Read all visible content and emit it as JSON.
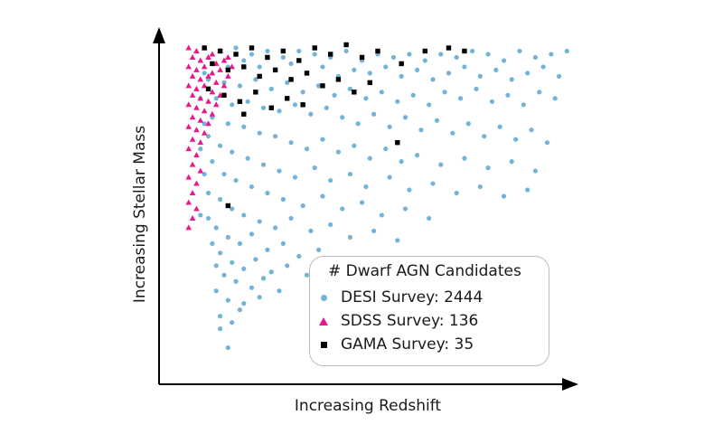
{
  "chart_data": {
    "type": "scatter",
    "title": "",
    "xlabel": "Increasing Redshift",
    "ylabel": "Increasing Stellar Mass",
    "xlim": [
      0,
      1
    ],
    "ylim": [
      0,
      1
    ],
    "grid": false,
    "ticks": "none",
    "legend": {
      "placement": "bottom-right",
      "title": "# Dwarf AGN Candidates",
      "entries": [
        {
          "label": "DESI Survey: 2444",
          "color": "#74b3d8",
          "marker": "circle"
        },
        {
          "label": "SDSS Survey: 136",
          "color": "#e9178a",
          "marker": "triangle"
        },
        {
          "label": "GAMA Survey: 35",
          "color": "#000000",
          "marker": "square"
        }
      ]
    },
    "series": [
      {
        "name": "DESI Survey: 2444",
        "color": "#74b3d8",
        "marker": "circle",
        "points": [
          [
            0.06,
            0.98
          ],
          [
            0.1,
            0.97
          ],
          [
            0.14,
            0.98
          ],
          [
            0.18,
            0.96
          ],
          [
            0.22,
            0.97
          ],
          [
            0.26,
            0.95
          ],
          [
            0.3,
            0.97
          ],
          [
            0.34,
            0.96
          ],
          [
            0.38,
            0.95
          ],
          [
            0.42,
            0.97
          ],
          [
            0.46,
            0.94
          ],
          [
            0.5,
            0.96
          ],
          [
            0.54,
            0.95
          ],
          [
            0.58,
            0.96
          ],
          [
            0.62,
            0.94
          ],
          [
            0.66,
            0.96
          ],
          [
            0.7,
            0.95
          ],
          [
            0.74,
            0.97
          ],
          [
            0.78,
            0.96
          ],
          [
            0.82,
            0.94
          ],
          [
            0.86,
            0.97
          ],
          [
            0.9,
            0.95
          ],
          [
            0.94,
            0.96
          ],
          [
            0.98,
            0.97
          ],
          [
            0.08,
            0.93
          ],
          [
            0.12,
            0.92
          ],
          [
            0.16,
            0.94
          ],
          [
            0.2,
            0.92
          ],
          [
            0.24,
            0.91
          ],
          [
            0.28,
            0.93
          ],
          [
            0.32,
            0.9
          ],
          [
            0.36,
            0.92
          ],
          [
            0.4,
            0.89
          ],
          [
            0.44,
            0.91
          ],
          [
            0.48,
            0.9
          ],
          [
            0.52,
            0.92
          ],
          [
            0.56,
            0.89
          ],
          [
            0.6,
            0.91
          ],
          [
            0.64,
            0.88
          ],
          [
            0.68,
            0.9
          ],
          [
            0.72,
            0.92
          ],
          [
            0.76,
            0.89
          ],
          [
            0.8,
            0.91
          ],
          [
            0.84,
            0.88
          ],
          [
            0.88,
            0.9
          ],
          [
            0.92,
            0.92
          ],
          [
            0.96,
            0.89
          ],
          [
            0.07,
            0.88
          ],
          [
            0.11,
            0.87
          ],
          [
            0.15,
            0.86
          ],
          [
            0.19,
            0.88
          ],
          [
            0.23,
            0.85
          ],
          [
            0.27,
            0.87
          ],
          [
            0.31,
            0.84
          ],
          [
            0.35,
            0.86
          ],
          [
            0.39,
            0.83
          ],
          [
            0.43,
            0.85
          ],
          [
            0.47,
            0.82
          ],
          [
            0.51,
            0.84
          ],
          [
            0.55,
            0.81
          ],
          [
            0.59,
            0.83
          ],
          [
            0.63,
            0.8
          ],
          [
            0.67,
            0.84
          ],
          [
            0.71,
            0.82
          ],
          [
            0.75,
            0.85
          ],
          [
            0.79,
            0.81
          ],
          [
            0.83,
            0.83
          ],
          [
            0.87,
            0.8
          ],
          [
            0.91,
            0.84
          ],
          [
            0.95,
            0.82
          ],
          [
            0.09,
            0.82
          ],
          [
            0.13,
            0.8
          ],
          [
            0.17,
            0.81
          ],
          [
            0.21,
            0.79
          ],
          [
            0.25,
            0.78
          ],
          [
            0.29,
            0.8
          ],
          [
            0.33,
            0.77
          ],
          [
            0.37,
            0.79
          ],
          [
            0.41,
            0.76
          ],
          [
            0.45,
            0.74
          ],
          [
            0.49,
            0.77
          ],
          [
            0.53,
            0.73
          ],
          [
            0.57,
            0.76
          ],
          [
            0.61,
            0.72
          ],
          [
            0.65,
            0.75
          ],
          [
            0.69,
            0.71
          ],
          [
            0.73,
            0.74
          ],
          [
            0.77,
            0.7
          ],
          [
            0.81,
            0.73
          ],
          [
            0.85,
            0.69
          ],
          [
            0.89,
            0.72
          ],
          [
            0.93,
            0.68
          ],
          [
            0.08,
            0.76
          ],
          [
            0.12,
            0.74
          ],
          [
            0.16,
            0.73
          ],
          [
            0.2,
            0.71
          ],
          [
            0.24,
            0.7
          ],
          [
            0.28,
            0.68
          ],
          [
            0.32,
            0.66
          ],
          [
            0.36,
            0.69
          ],
          [
            0.4,
            0.65
          ],
          [
            0.44,
            0.67
          ],
          [
            0.48,
            0.63
          ],
          [
            0.52,
            0.66
          ],
          [
            0.56,
            0.62
          ],
          [
            0.6,
            0.64
          ],
          [
            0.66,
            0.61
          ],
          [
            0.72,
            0.63
          ],
          [
            0.78,
            0.6
          ],
          [
            0.84,
            0.62
          ],
          [
            0.9,
            0.59
          ],
          [
            0.07,
            0.7
          ],
          [
            0.1,
            0.67
          ],
          [
            0.13,
            0.65
          ],
          [
            0.17,
            0.63
          ],
          [
            0.21,
            0.61
          ],
          [
            0.25,
            0.59
          ],
          [
            0.29,
            0.57
          ],
          [
            0.34,
            0.6
          ],
          [
            0.38,
            0.56
          ],
          [
            0.43,
            0.58
          ],
          [
            0.47,
            0.54
          ],
          [
            0.53,
            0.57
          ],
          [
            0.58,
            0.53
          ],
          [
            0.64,
            0.55
          ],
          [
            0.7,
            0.52
          ],
          [
            0.76,
            0.54
          ],
          [
            0.82,
            0.51
          ],
          [
            0.88,
            0.53
          ],
          [
            0.08,
            0.62
          ],
          [
            0.11,
            0.58
          ],
          [
            0.14,
            0.56
          ],
          [
            0.18,
            0.54
          ],
          [
            0.22,
            0.52
          ],
          [
            0.26,
            0.5
          ],
          [
            0.31,
            0.48
          ],
          [
            0.36,
            0.51
          ],
          [
            0.41,
            0.47
          ],
          [
            0.46,
            0.49
          ],
          [
            0.51,
            0.45
          ],
          [
            0.57,
            0.47
          ],
          [
            0.63,
            0.44
          ],
          [
            0.07,
            0.52
          ],
          [
            0.1,
            0.5
          ],
          [
            0.13,
            0.47
          ],
          [
            0.16,
            0.45
          ],
          [
            0.2,
            0.43
          ],
          [
            0.24,
            0.41
          ],
          [
            0.28,
            0.44
          ],
          [
            0.33,
            0.4
          ],
          [
            0.38,
            0.42
          ],
          [
            0.43,
            0.38
          ],
          [
            0.49,
            0.4
          ],
          [
            0.55,
            0.37
          ],
          [
            0.07,
            0.44
          ],
          [
            0.09,
            0.41
          ],
          [
            0.12,
            0.38
          ],
          [
            0.15,
            0.36
          ],
          [
            0.18,
            0.39
          ],
          [
            0.22,
            0.34
          ],
          [
            0.26,
            0.36
          ],
          [
            0.3,
            0.32
          ],
          [
            0.35,
            0.34
          ],
          [
            0.41,
            0.31
          ],
          [
            0.08,
            0.36
          ],
          [
            0.1,
            0.33
          ],
          [
            0.13,
            0.3
          ],
          [
            0.16,
            0.28
          ],
          [
            0.19,
            0.31
          ],
          [
            0.23,
            0.27
          ],
          [
            0.27,
            0.29
          ],
          [
            0.32,
            0.26
          ],
          [
            0.09,
            0.29
          ],
          [
            0.11,
            0.26
          ],
          [
            0.14,
            0.24
          ],
          [
            0.18,
            0.22
          ],
          [
            0.21,
            0.25
          ],
          [
            0.25,
            0.21
          ],
          [
            0.09,
            0.21
          ],
          [
            0.12,
            0.18
          ],
          [
            0.16,
            0.17
          ],
          [
            0.2,
            0.19
          ],
          [
            0.1,
            0.13
          ],
          [
            0.13,
            0.11
          ],
          [
            0.15,
            0.15
          ],
          [
            0.1,
            0.09
          ],
          [
            0.12,
            0.03
          ],
          [
            0.05,
            0.45
          ],
          [
            0.06,
            0.58
          ],
          [
            0.05,
            0.66
          ],
          [
            0.06,
            0.74
          ],
          [
            0.05,
            0.82
          ],
          [
            0.06,
            0.9
          ]
        ]
      },
      {
        "name": "SDSS Survey: 136",
        "color": "#e9178a",
        "marker": "triangle",
        "points": [
          [
            0.02,
            0.98
          ],
          [
            0.04,
            0.97
          ],
          [
            0.06,
            0.98
          ],
          [
            0.08,
            0.96
          ],
          [
            0.1,
            0.97
          ],
          [
            0.12,
            0.95
          ],
          [
            0.03,
            0.95
          ],
          [
            0.05,
            0.94
          ],
          [
            0.07,
            0.95
          ],
          [
            0.09,
            0.93
          ],
          [
            0.11,
            0.94
          ],
          [
            0.13,
            0.92
          ],
          [
            0.02,
            0.92
          ],
          [
            0.04,
            0.91
          ],
          [
            0.06,
            0.92
          ],
          [
            0.08,
            0.9
          ],
          [
            0.1,
            0.91
          ],
          [
            0.12,
            0.89
          ],
          [
            0.03,
            0.89
          ],
          [
            0.05,
            0.88
          ],
          [
            0.07,
            0.89
          ],
          [
            0.09,
            0.87
          ],
          [
            0.11,
            0.86
          ],
          [
            0.02,
            0.86
          ],
          [
            0.04,
            0.85
          ],
          [
            0.06,
            0.86
          ],
          [
            0.08,
            0.84
          ],
          [
            0.1,
            0.83
          ],
          [
            0.03,
            0.83
          ],
          [
            0.05,
            0.82
          ],
          [
            0.07,
            0.81
          ],
          [
            0.09,
            0.8
          ],
          [
            0.02,
            0.8
          ],
          [
            0.04,
            0.79
          ],
          [
            0.06,
            0.78
          ],
          [
            0.08,
            0.77
          ],
          [
            0.03,
            0.76
          ],
          [
            0.05,
            0.75
          ],
          [
            0.07,
            0.74
          ],
          [
            0.02,
            0.73
          ],
          [
            0.04,
            0.72
          ],
          [
            0.06,
            0.71
          ],
          [
            0.03,
            0.69
          ],
          [
            0.05,
            0.68
          ],
          [
            0.02,
            0.66
          ],
          [
            0.04,
            0.64
          ],
          [
            0.03,
            0.61
          ],
          [
            0.05,
            0.59
          ],
          [
            0.02,
            0.57
          ],
          [
            0.04,
            0.55
          ],
          [
            0.03,
            0.52
          ],
          [
            0.02,
            0.49
          ],
          [
            0.04,
            0.47
          ],
          [
            0.03,
            0.44
          ],
          [
            0.02,
            0.41
          ]
        ]
      },
      {
        "name": "GAMA Survey: 35",
        "color": "#000000",
        "marker": "square",
        "points": [
          [
            0.06,
            0.98
          ],
          [
            0.1,
            0.97
          ],
          [
            0.14,
            0.96
          ],
          [
            0.18,
            0.98
          ],
          [
            0.22,
            0.95
          ],
          [
            0.26,
            0.97
          ],
          [
            0.3,
            0.94
          ],
          [
            0.34,
            0.98
          ],
          [
            0.38,
            0.96
          ],
          [
            0.42,
            0.99
          ],
          [
            0.46,
            0.95
          ],
          [
            0.5,
            0.97
          ],
          [
            0.56,
            0.93
          ],
          [
            0.62,
            0.97
          ],
          [
            0.68,
            0.98
          ],
          [
            0.72,
            0.97
          ],
          [
            0.08,
            0.93
          ],
          [
            0.12,
            0.91
          ],
          [
            0.16,
            0.92
          ],
          [
            0.2,
            0.89
          ],
          [
            0.24,
            0.91
          ],
          [
            0.28,
            0.88
          ],
          [
            0.32,
            0.9
          ],
          [
            0.36,
            0.86
          ],
          [
            0.4,
            0.88
          ],
          [
            0.44,
            0.84
          ],
          [
            0.48,
            0.87
          ],
          [
            0.07,
            0.85
          ],
          [
            0.11,
            0.83
          ],
          [
            0.15,
            0.81
          ],
          [
            0.19,
            0.84
          ],
          [
            0.23,
            0.79
          ],
          [
            0.27,
            0.82
          ],
          [
            0.31,
            0.8
          ],
          [
            0.16,
            0.77
          ],
          [
            0.55,
            0.68
          ],
          [
            0.12,
            0.48
          ]
        ]
      }
    ]
  }
}
